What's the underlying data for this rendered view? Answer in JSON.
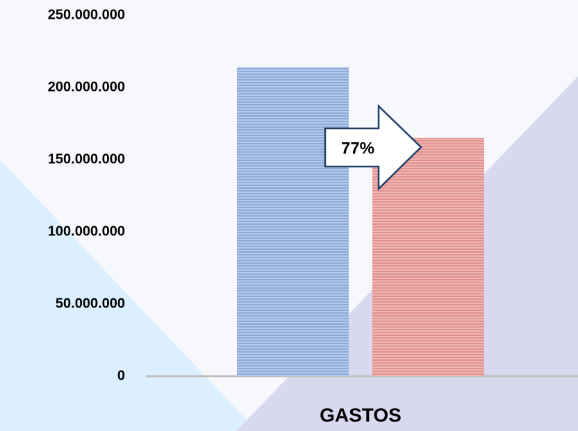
{
  "chart_data": {
    "type": "bar",
    "categories": [
      "GASTOS"
    ],
    "series": [
      {
        "color": "#8eaadb",
        "values": [
          214000000
        ]
      },
      {
        "color": "#e3908e",
        "values": [
          165000000
        ]
      }
    ],
    "ylim": [
      0,
      250000000
    ],
    "yticks": [
      0,
      {
        "value": 50000000,
        "label": "50.000.000"
      },
      {
        "value": 100000000,
        "label": "100.000.000"
      },
      {
        "value": 150000000,
        "label": "150.000.000"
      },
      {
        "value": 200000000,
        "label": "200.000.000"
      },
      {
        "value": 250000000,
        "label": "250.000.000"
      }
    ],
    "annotation": "77%"
  }
}
